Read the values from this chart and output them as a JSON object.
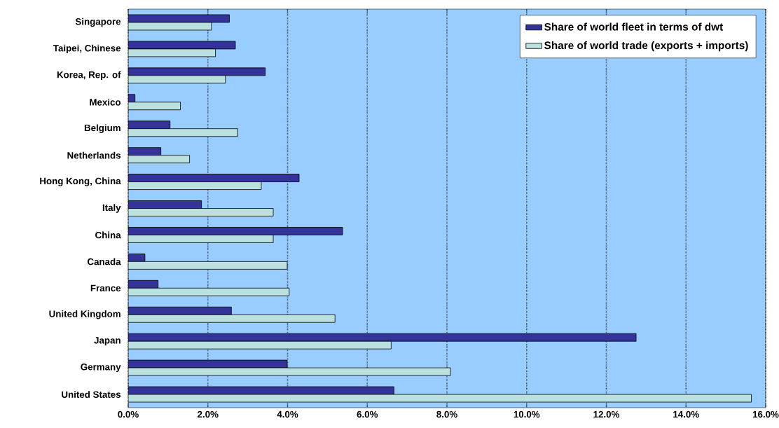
{
  "chart_data": {
    "type": "bar",
    "orientation": "horizontal",
    "categories": [
      "Singapore",
      "Taipei, Chinese",
      "Korea, Rep. of",
      "Mexico",
      "Belgium",
      "Netherlands",
      "Hong Kong, China",
      "Italy",
      "China",
      "Canada",
      "France",
      "United Kingdom",
      "Japan",
      "Germany",
      "United States"
    ],
    "series": [
      {
        "name": "Share of world fleet in terms of dwt",
        "color": "#333399",
        "values": [
          2.54,
          2.69,
          3.44,
          0.17,
          1.05,
          0.82,
          4.29,
          1.84,
          5.38,
          0.42,
          0.75,
          2.59,
          12.75,
          3.99,
          6.67
        ]
      },
      {
        "name": "Share of world trade (exports + imports)",
        "color": "#bbe0e0",
        "values": [
          2.09,
          2.19,
          2.44,
          1.31,
          2.75,
          1.54,
          3.34,
          3.64,
          3.64,
          3.99,
          4.04,
          5.19,
          6.6,
          8.09,
          15.64
        ]
      }
    ],
    "xlim": [
      0,
      16
    ],
    "xticks": [
      {
        "value": 0,
        "label": "0.0%"
      },
      {
        "value": 2,
        "label": "2.0%"
      },
      {
        "value": 4,
        "label": "4.0%"
      },
      {
        "value": 6,
        "label": "6.0%"
      },
      {
        "value": 8,
        "label": "8.0%"
      },
      {
        "value": 10,
        "label": "10.0%"
      },
      {
        "value": 12,
        "label": "12.0%"
      },
      {
        "value": 14,
        "label": "14.0%"
      },
      {
        "value": 16,
        "label": "16.0%"
      }
    ],
    "grid": "x",
    "legend": "top right"
  }
}
